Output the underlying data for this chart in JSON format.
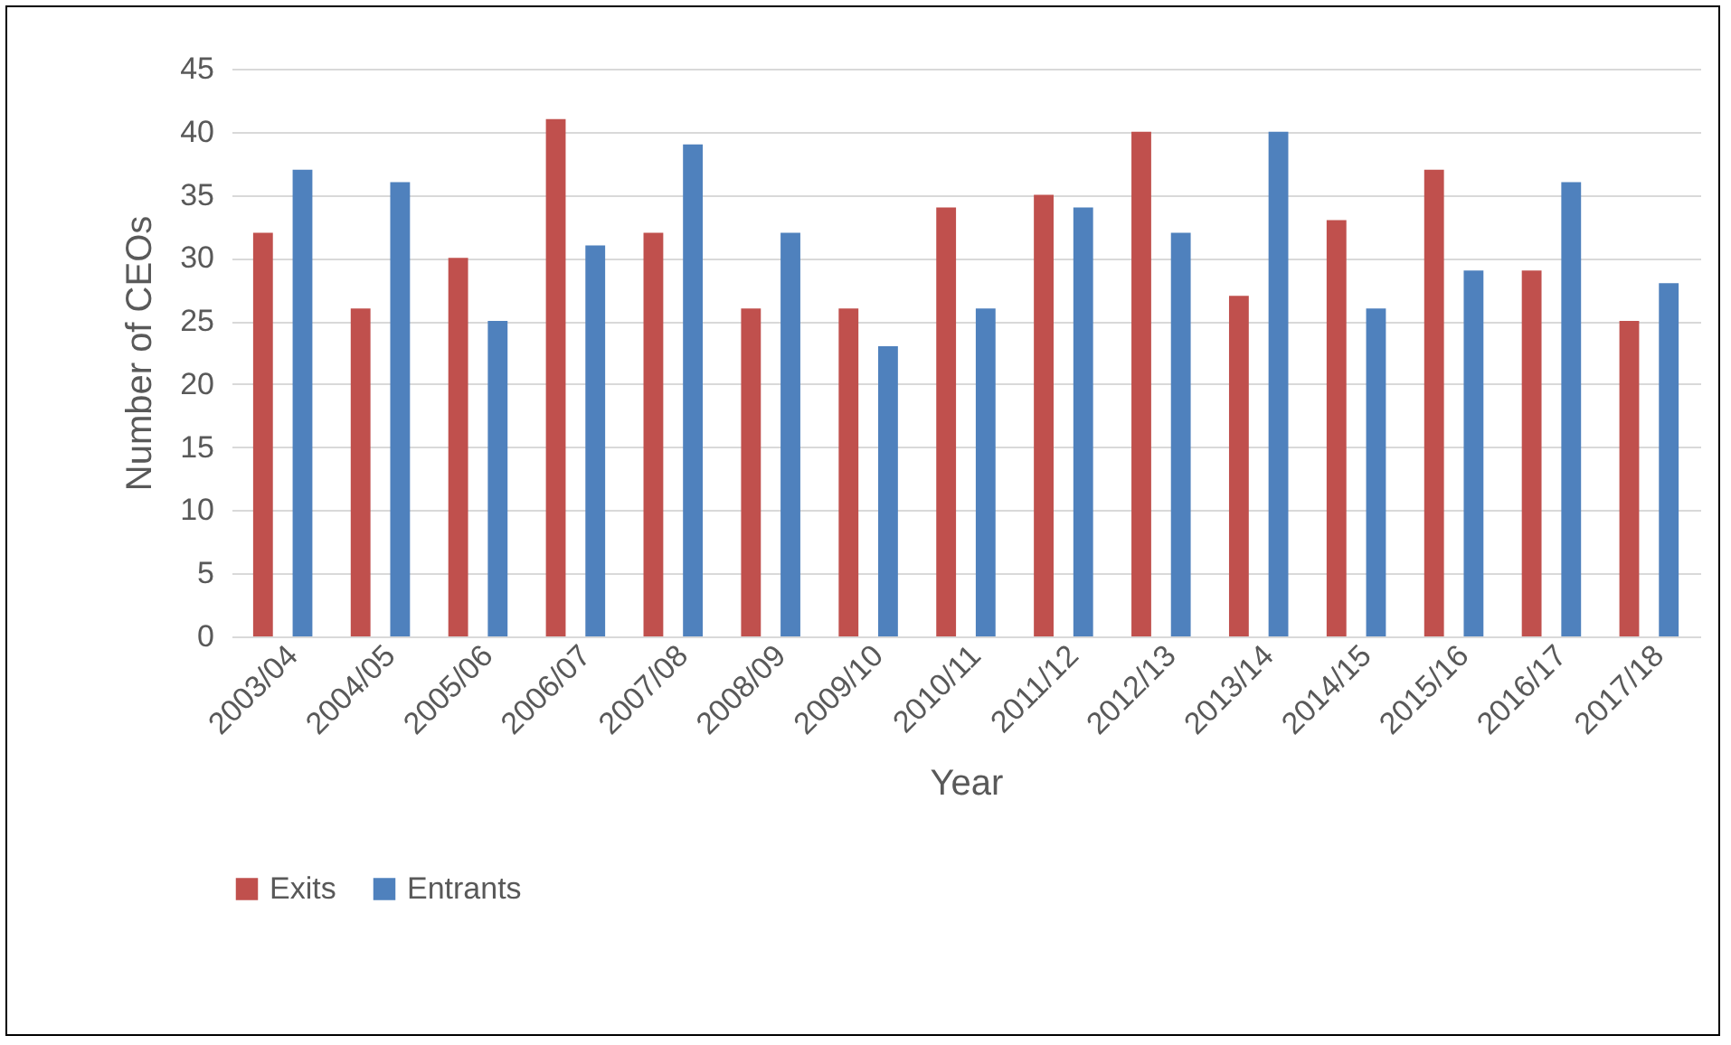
{
  "chart_data": {
    "type": "bar",
    "xlabel": "Year",
    "ylabel": "Number of CEOs",
    "categories": [
      "2003/04",
      "2004/05",
      "2005/06",
      "2006/07",
      "2007/08",
      "2008/09",
      "2009/10",
      "2010/11",
      "2011/12",
      "2012/13",
      "2013/14",
      "2014/15",
      "2015/16",
      "2016/17",
      "2017/18"
    ],
    "series": [
      {
        "name": "Exits",
        "color": "#c0504d",
        "values": [
          32,
          26,
          30,
          41,
          32,
          26,
          26,
          34,
          35,
          40,
          27,
          33,
          37,
          29,
          25
        ]
      },
      {
        "name": "Entrants",
        "color": "#4f81bd",
        "values": [
          37,
          36,
          25,
          31,
          39,
          32,
          23,
          26,
          34,
          32,
          40,
          26,
          29,
          36,
          28
        ]
      }
    ],
    "ylim": [
      0,
      45
    ],
    "yticks": [
      0,
      5,
      10,
      15,
      20,
      25,
      30,
      35,
      40,
      45
    ],
    "grid": "y",
    "legend": "bottom"
  }
}
